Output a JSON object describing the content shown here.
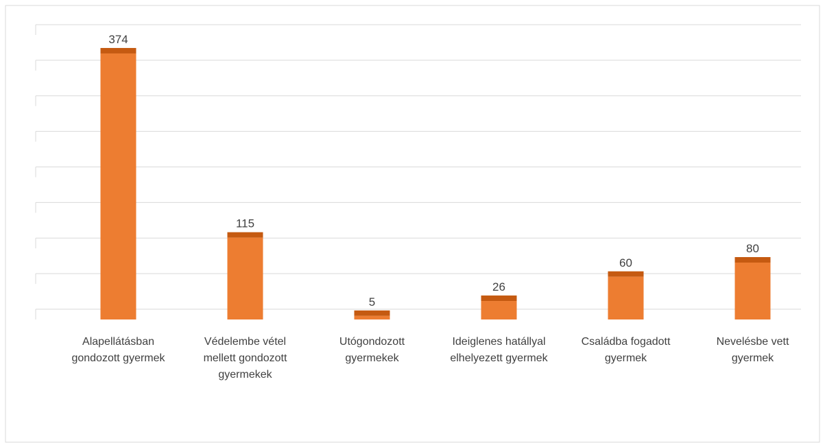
{
  "chart_data": {
    "type": "bar",
    "categories": [
      "Alapellátásban gondozott gyermek",
      "Védelembe vétel mellett gondozott gyermekek",
      "Utógondozott gyermekek",
      "Ideiglenes hatállyal elhelyezett gyermek",
      "Családba fogadott gyermek",
      "Nevelésbe vett gyermek"
    ],
    "values": [
      374,
      115,
      5,
      26,
      60,
      80
    ],
    "color": "#ed7d31",
    "top_color": "#c55a11",
    "ylim": [
      0,
      400
    ],
    "yticks": [
      0,
      50,
      100,
      150,
      200,
      250,
      300,
      350,
      400
    ],
    "grid": true
  }
}
